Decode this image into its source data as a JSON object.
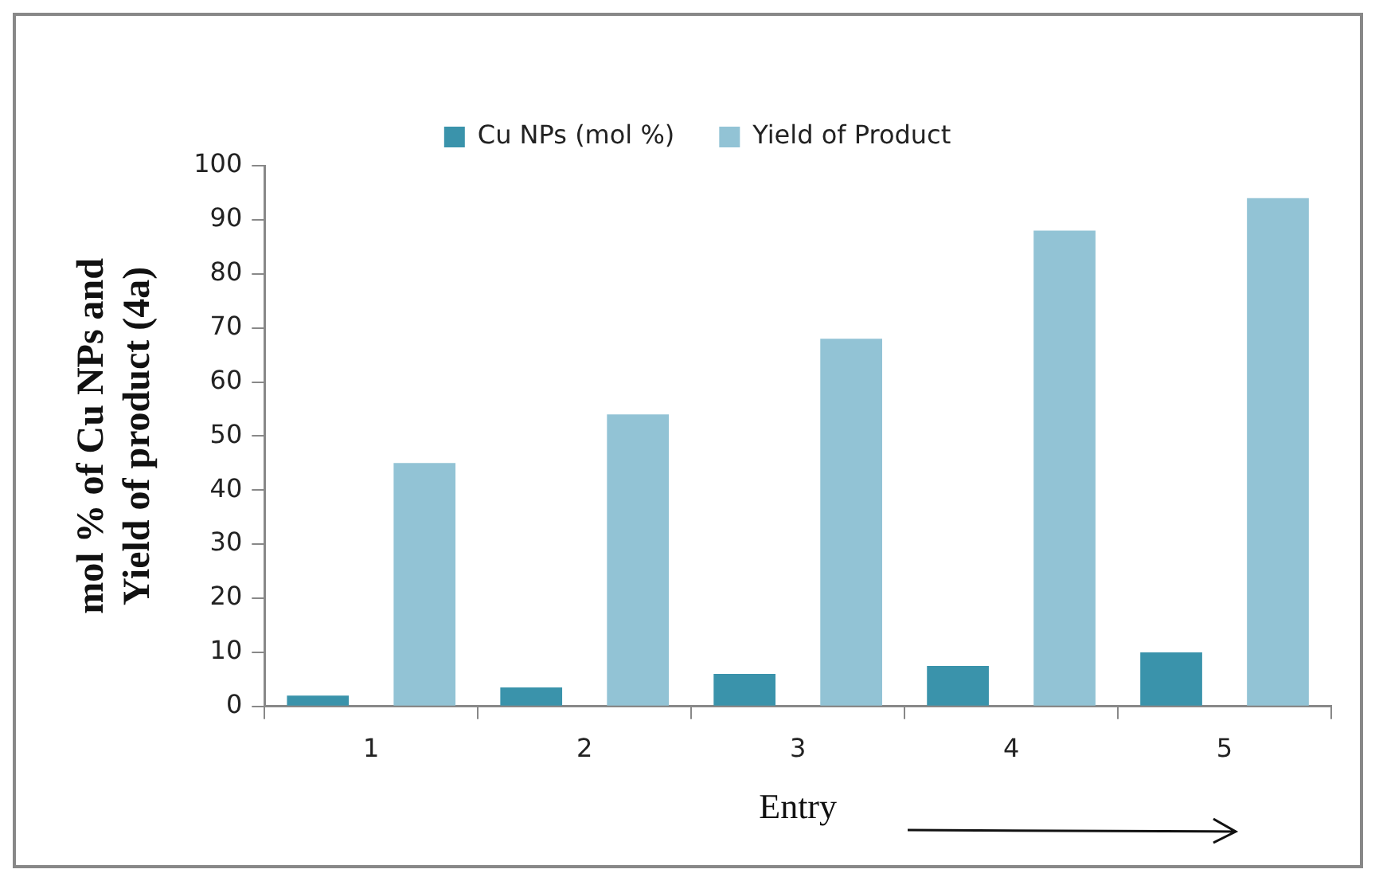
{
  "chart_data": {
    "type": "bar",
    "xlabel": "Entry",
    "ylabel": "mol % of Cu NPs and\nYield of product (4a)",
    "categories": [
      "1",
      "2",
      "3",
      "4",
      "5"
    ],
    "series": [
      {
        "name": "Cu NPs (mol %)",
        "color": "#3a93ab",
        "values": [
          2,
          3.5,
          6,
          7.5,
          10
        ]
      },
      {
        "name": "Yield of Product",
        "color": "#92c3d5",
        "values": [
          45,
          54,
          68,
          88,
          94
        ]
      }
    ],
    "ylim": [
      0,
      100
    ],
    "yticks": [
      0,
      10,
      20,
      30,
      40,
      50,
      60,
      70,
      80,
      90,
      100
    ],
    "grid": false,
    "legend": "top"
  }
}
